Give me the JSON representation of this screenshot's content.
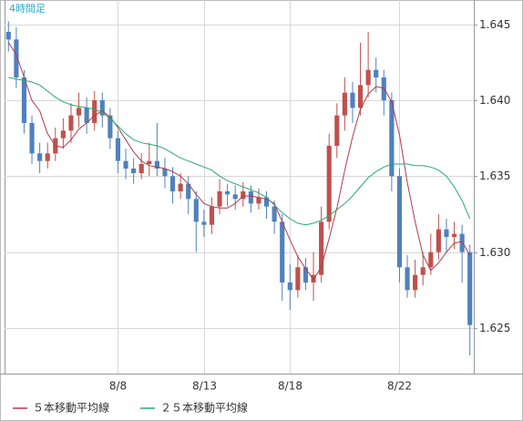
{
  "chart_data": {
    "type": "candlestick",
    "title": "4時間足",
    "categories": [
      null,
      null,
      null,
      null,
      null,
      null,
      null,
      null,
      null,
      null,
      null,
      null,
      null,
      null,
      "8/8",
      null,
      null,
      null,
      null,
      null,
      null,
      null,
      null,
      null,
      null,
      "8/13",
      null,
      null,
      null,
      null,
      null,
      null,
      null,
      null,
      null,
      null,
      "8/18",
      null,
      null,
      null,
      null,
      null,
      null,
      null,
      null,
      null,
      null,
      null,
      null,
      null,
      "8/22",
      null,
      null,
      null,
      null,
      null,
      null,
      null,
      null,
      null
    ],
    "open": [
      1.6445,
      1.644,
      1.6415,
      1.6385,
      1.6365,
      1.636,
      1.6365,
      1.6375,
      1.638,
      1.639,
      1.6395,
      1.6385,
      1.64,
      1.639,
      1.6375,
      1.636,
      1.6355,
      1.6352,
      1.6358,
      1.636,
      1.6355,
      1.635,
      1.634,
      1.6345,
      1.6335,
      1.632,
      1.6318,
      1.633,
      1.634,
      1.6338,
      1.6335,
      1.634,
      1.6332,
      1.6336,
      1.633,
      1.632,
      1.628,
      1.6275,
      1.629,
      1.628,
      1.6285,
      1.632,
      1.637,
      1.639,
      1.6405,
      1.6395,
      1.641,
      1.642,
      1.6415,
      1.64,
      1.635,
      1.629,
      1.6275,
      1.6285,
      1.629,
      1.63,
      1.6315,
      1.631,
      1.6312,
      1.63
    ],
    "high": [
      1.6452,
      1.6448,
      1.642,
      1.639,
      1.6372,
      1.6372,
      1.6382,
      1.6388,
      1.6398,
      1.6405,
      1.6402,
      1.6406,
      1.6405,
      1.6395,
      1.638,
      1.6368,
      1.6362,
      1.6365,
      1.6372,
      1.6385,
      1.6362,
      1.6356,
      1.6352,
      1.635,
      1.634,
      1.6328,
      1.6336,
      1.6348,
      1.6345,
      1.6344,
      1.6346,
      1.6344,
      1.6342,
      1.634,
      1.6334,
      1.6325,
      1.6292,
      1.6298,
      1.6296,
      1.63,
      1.633,
      1.6378,
      1.6398,
      1.6415,
      1.6412,
      1.6438,
      1.6445,
      1.6428,
      1.642,
      1.6405,
      1.6355,
      1.6298,
      1.6295,
      1.63,
      1.6312,
      1.6325,
      1.6322,
      1.632,
      1.6318,
      1.6305
    ],
    "low": [
      1.6432,
      1.6408,
      1.6378,
      1.6358,
      1.6352,
      1.6355,
      1.636,
      1.6368,
      1.6372,
      1.6382,
      1.6378,
      1.638,
      1.6382,
      1.6368,
      1.6352,
      1.6348,
      1.6345,
      1.6348,
      1.635,
      1.635,
      1.6342,
      1.6332,
      1.6335,
      1.6325,
      1.63,
      1.631,
      1.6312,
      1.6325,
      1.633,
      1.6328,
      1.633,
      1.6326,
      1.6328,
      1.6322,
      1.6312,
      1.6268,
      1.6262,
      1.627,
      1.6275,
      1.6268,
      1.628,
      1.6315,
      1.6362,
      1.638,
      1.6385,
      1.639,
      1.6402,
      1.6405,
      1.639,
      1.634,
      1.628,
      1.627,
      1.627,
      1.6278,
      1.6285,
      1.6295,
      1.63,
      1.6302,
      1.628,
      1.6232
    ],
    "close": [
      1.644,
      1.6415,
      1.6385,
      1.6365,
      1.636,
      1.6365,
      1.6375,
      1.638,
      1.639,
      1.6395,
      1.6385,
      1.64,
      1.639,
      1.6375,
      1.636,
      1.6355,
      1.6352,
      1.6358,
      1.636,
      1.6355,
      1.635,
      1.634,
      1.6345,
      1.6335,
      1.632,
      1.6318,
      1.633,
      1.634,
      1.6338,
      1.6335,
      1.634,
      1.6332,
      1.6336,
      1.633,
      1.632,
      1.628,
      1.6275,
      1.629,
      1.628,
      1.6285,
      1.632,
      1.637,
      1.639,
      1.6405,
      1.6395,
      1.641,
      1.642,
      1.6415,
      1.64,
      1.635,
      1.629,
      1.6275,
      1.6285,
      1.629,
      1.63,
      1.6315,
      1.631,
      1.6312,
      1.63,
      1.6252
    ],
    "up_color": "#c0504d",
    "down_color": "#4f81bd",
    "series": [
      {
        "name": "５本移動平均線",
        "color": "#b03a48",
        "values": [
          1.6438,
          1.643,
          1.6415,
          1.64,
          1.6393,
          1.6378,
          1.637,
          1.6369,
          1.6374,
          1.6381,
          1.6385,
          1.639,
          1.6393,
          1.6389,
          1.6382,
          1.6374,
          1.6366,
          1.636,
          1.6357,
          1.6356,
          1.6355,
          1.6353,
          1.635,
          1.6345,
          1.6338,
          1.6332,
          1.633,
          1.6329,
          1.6329,
          1.6332,
          1.6337,
          1.6337,
          1.6336,
          1.6335,
          1.6332,
          1.632,
          1.6308,
          1.6297,
          1.6289,
          1.6282,
          1.629,
          1.6309,
          1.6329,
          1.6354,
          1.6376,
          1.6394,
          1.6404,
          1.6409,
          1.6408,
          1.6399,
          1.6377,
          1.6346,
          1.632,
          1.6298,
          1.6288,
          1.6293,
          1.63,
          1.6306,
          1.6307,
          1.6298
        ]
      },
      {
        "name": "２５本移動平均線",
        "color": "#2aa876",
        "values": [
          1.6415,
          1.6414,
          1.6413,
          1.6412,
          1.641,
          1.6406,
          1.6402,
          1.6399,
          1.6397,
          1.6396,
          1.6395,
          1.6394,
          1.6392,
          1.6388,
          1.6383,
          1.6378,
          1.6374,
          1.6372,
          1.6371,
          1.637,
          1.6368,
          1.6365,
          1.6362,
          1.636,
          1.6358,
          1.6356,
          1.6354,
          1.635,
          1.6347,
          1.6345,
          1.6343,
          1.6341,
          1.6339,
          1.6336,
          1.6331,
          1.6326,
          1.6322,
          1.6319,
          1.6318,
          1.6319,
          1.6321,
          1.6324,
          1.6328,
          1.6332,
          1.6337,
          1.6343,
          1.6349,
          1.6353,
          1.6356,
          1.6358,
          1.6358,
          1.6358,
          1.6357,
          1.6357,
          1.6356,
          1.6354,
          1.635,
          1.6343,
          1.6334,
          1.6322
        ]
      }
    ],
    "ylim": [
      1.622,
      1.6466
    ],
    "yticks": [
      1.625,
      {
        "value": 1.63,
        "label": "1.630"
      },
      1.635,
      {
        "value": 1.64,
        "label": "1.640"
      },
      1.645
    ],
    "grid": true
  }
}
